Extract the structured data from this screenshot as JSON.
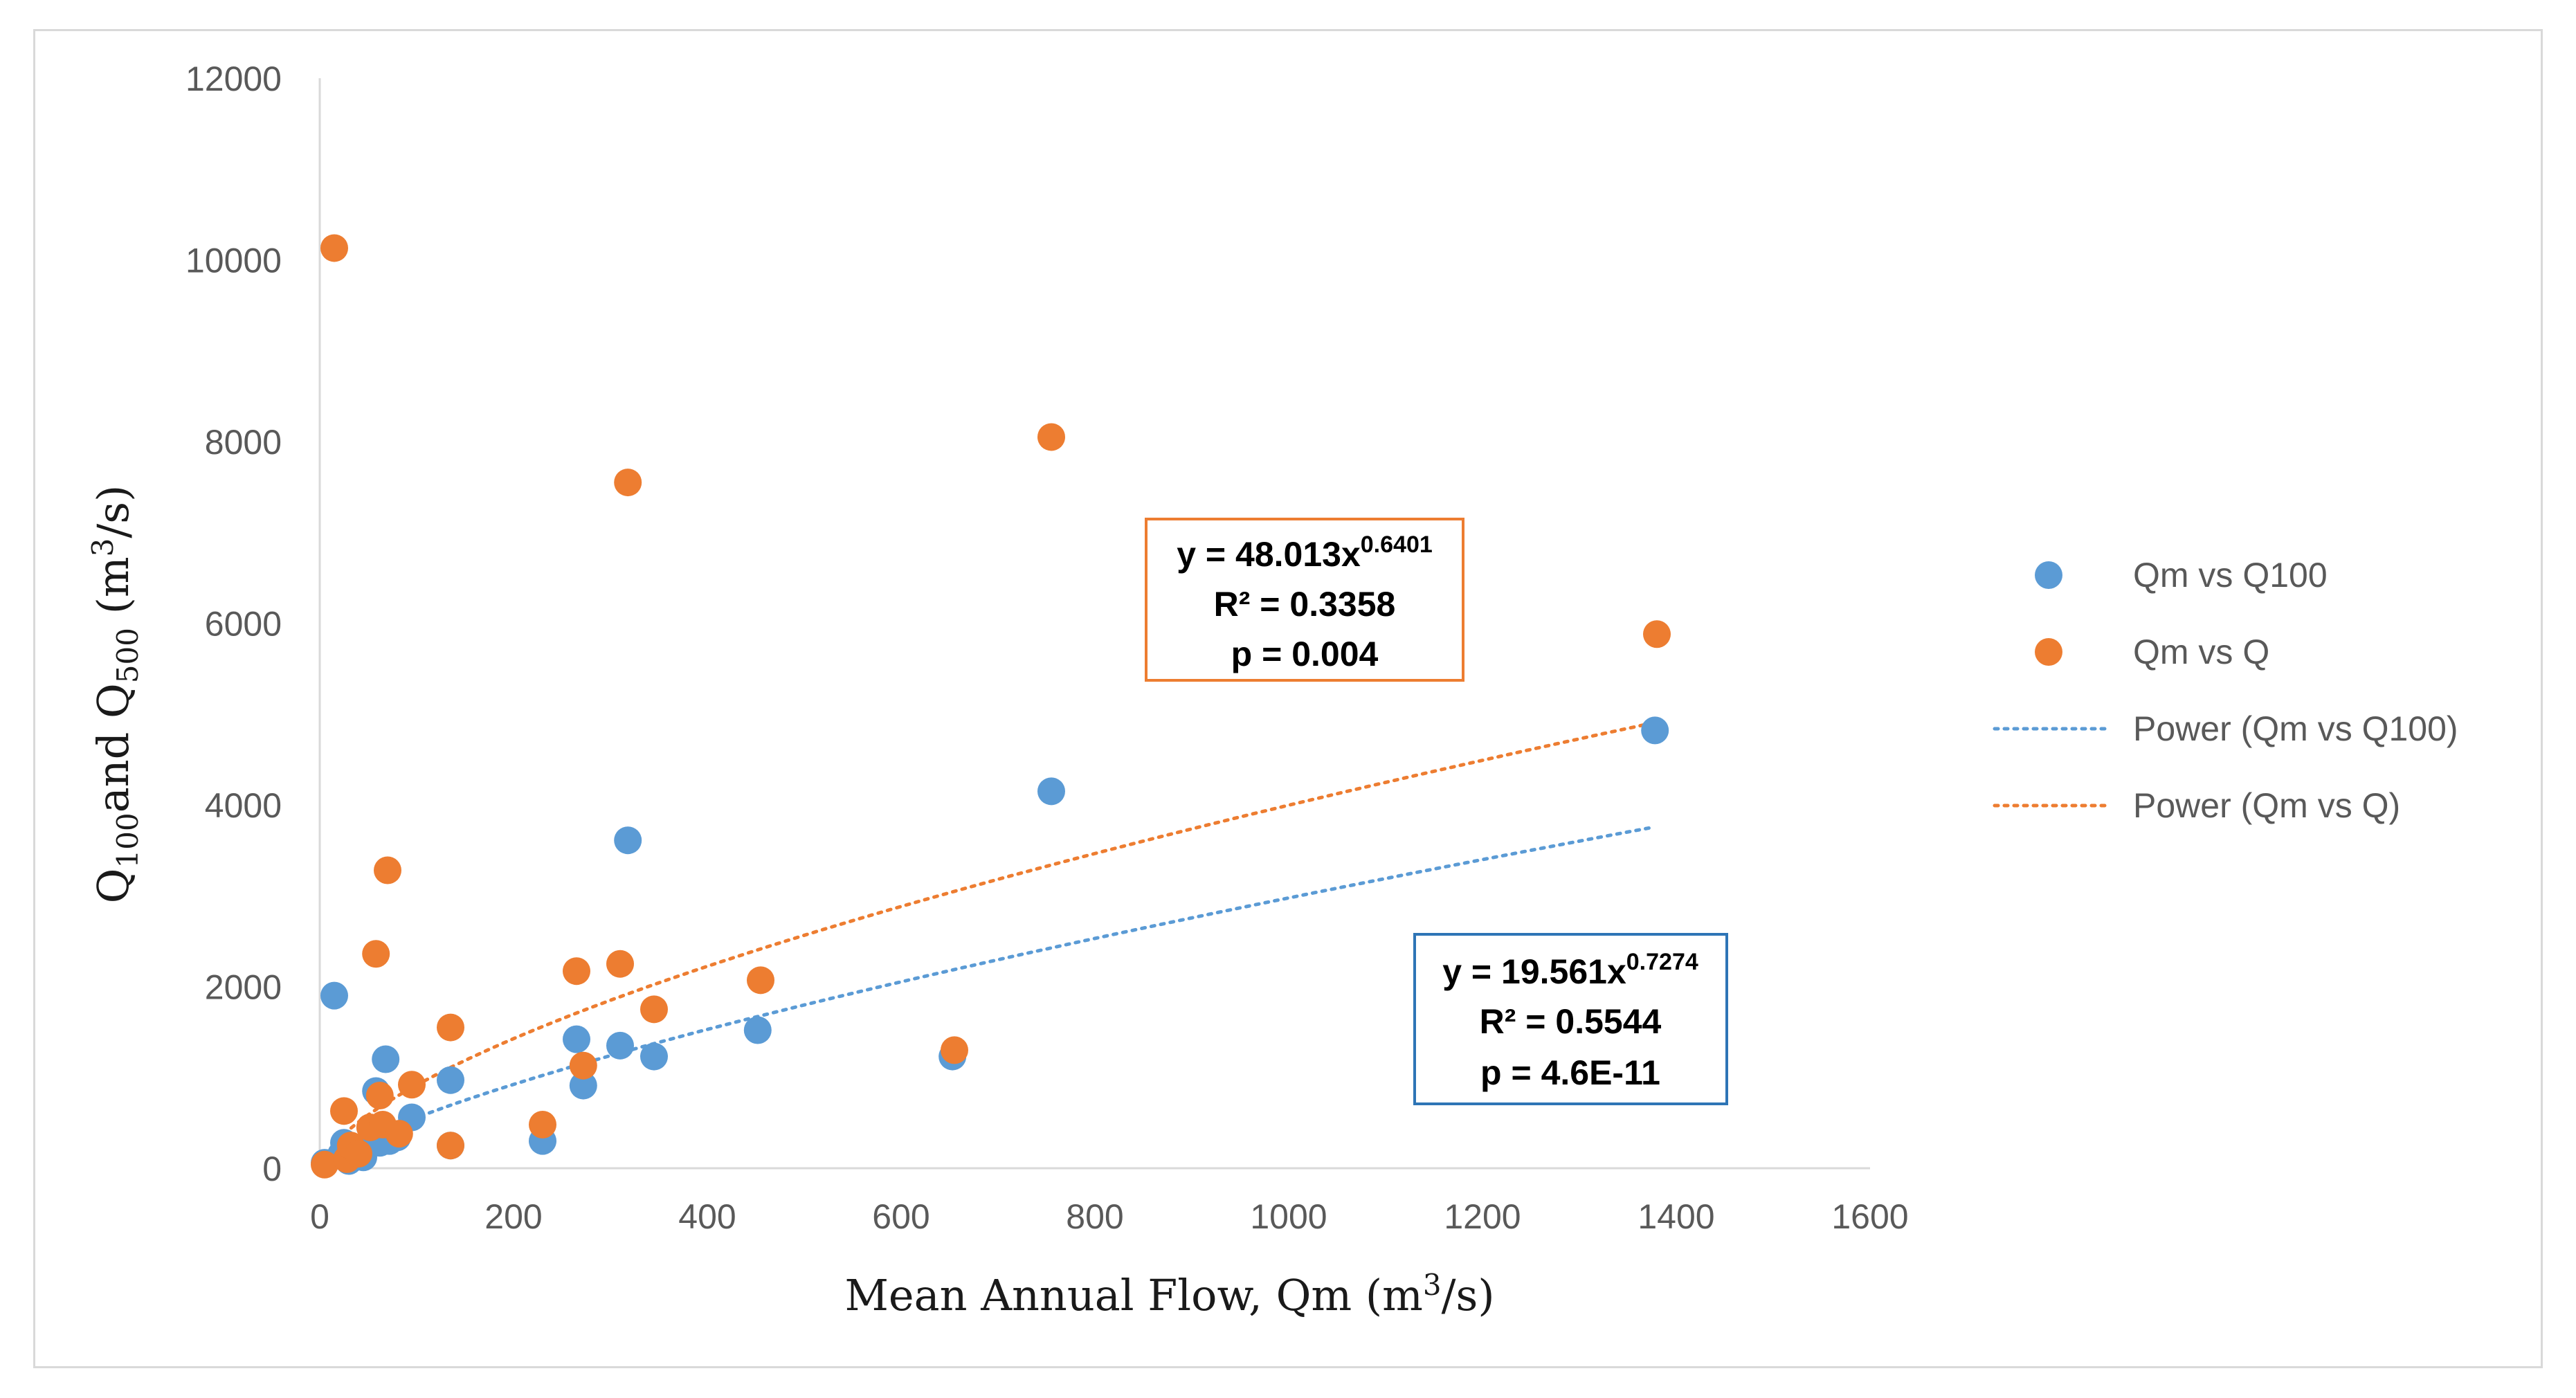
{
  "chart_data": {
    "type": "scatter",
    "title": "",
    "xlabel": "Mean Annual Flow, Qm (m³/s)",
    "xlabel_parts": {
      "pre": "Mean Annual Flow, Qm (m",
      "sup": "3",
      "post": "/s)"
    },
    "ylabel": "Q100 and Q500 (m³/s)",
    "ylabel_parts": {
      "q1": "Q",
      "sub1": "100",
      "mid": "and Q",
      "sub2": "500",
      "pre_unit": " (m",
      "sup": "3",
      "post": "/s)"
    },
    "xlim": [
      0,
      1600
    ],
    "ylim": [
      0,
      12000
    ],
    "x_ticks": [
      "0",
      "200",
      "400",
      "600",
      "800",
      "1000",
      "1200",
      "1400",
      "1600"
    ],
    "y_ticks": [
      "0",
      "2000",
      "4000",
      "6000",
      "8000",
      "10000",
      "12000"
    ],
    "grid": false,
    "legend_position": "right",
    "series": [
      {
        "name": "Qm vs Q100",
        "color": "#5b9bd5",
        "points": [
          [
            5,
            60
          ],
          [
            15,
            1900
          ],
          [
            22,
            150
          ],
          [
            25,
            280
          ],
          [
            30,
            80
          ],
          [
            38,
            200
          ],
          [
            45,
            120
          ],
          [
            55,
            380
          ],
          [
            58,
            850
          ],
          [
            62,
            280
          ],
          [
            68,
            1200
          ],
          [
            72,
            300
          ],
          [
            80,
            340
          ],
          [
            95,
            560
          ],
          [
            135,
            970
          ],
          [
            135,
            250
          ],
          [
            230,
            300
          ],
          [
            265,
            1420
          ],
          [
            272,
            910
          ],
          [
            310,
            1350
          ],
          [
            318,
            3610
          ],
          [
            345,
            1230
          ],
          [
            452,
            1520
          ],
          [
            653,
            1230
          ],
          [
            755,
            4150
          ],
          [
            1378,
            4820
          ]
        ]
      },
      {
        "name": "Qm vs Q",
        "color": "#ed7d31",
        "points": [
          [
            5,
            40
          ],
          [
            15,
            10130
          ],
          [
            25,
            630
          ],
          [
            28,
            100
          ],
          [
            32,
            250
          ],
          [
            40,
            160
          ],
          [
            52,
            450
          ],
          [
            58,
            2360
          ],
          [
            62,
            800
          ],
          [
            65,
            480
          ],
          [
            70,
            3280
          ],
          [
            82,
            380
          ],
          [
            95,
            920
          ],
          [
            135,
            1550
          ],
          [
            135,
            250
          ],
          [
            230,
            480
          ],
          [
            265,
            2170
          ],
          [
            272,
            1130
          ],
          [
            310,
            2250
          ],
          [
            318,
            7550
          ],
          [
            345,
            1750
          ],
          [
            455,
            2070
          ],
          [
            655,
            1300
          ],
          [
            755,
            8050
          ],
          [
            1380,
            5880
          ]
        ]
      }
    ],
    "trendlines": [
      {
        "name": "Power (Qm vs Q100)",
        "color": "#5b9bd5",
        "a": 19.561,
        "b": 0.7274,
        "x_range": [
          5,
          1378
        ]
      },
      {
        "name": "Power (Qm vs Q)",
        "color": "#ed7d31",
        "a": 48.013,
        "b": 0.6401,
        "x_range": [
          5,
          1378
        ]
      }
    ],
    "annotations": [
      {
        "name": "q500-equation",
        "color": "#ed7d31",
        "eq_prefix": "y = 48.013x",
        "eq_exp": "0.6401",
        "r2": "R² = 0.3358",
        "p": "p = 0.004"
      },
      {
        "name": "q100-equation",
        "color": "#2e75b6",
        "eq_prefix": "y = 19.561x",
        "eq_exp": "0.7274",
        "r2": "R² = 0.5544",
        "p": "p = 4.6E-11"
      }
    ],
    "legend": [
      {
        "label": "Qm vs Q100",
        "kind": "marker",
        "color": "#5b9bd5"
      },
      {
        "label": "Qm vs Q",
        "kind": "marker",
        "color": "#ed7d31"
      },
      {
        "label": "Power (Qm vs Q100)",
        "kind": "dotted-line",
        "color": "#5b9bd5"
      },
      {
        "label": "Power (Qm vs Q)",
        "kind": "dotted-line",
        "color": "#ed7d31"
      }
    ]
  }
}
